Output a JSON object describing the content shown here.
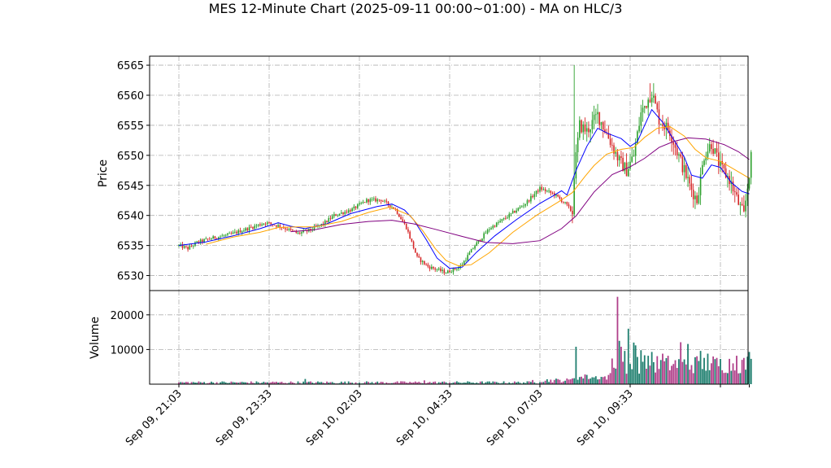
{
  "chart_data": {
    "type": "candlestick",
    "title": "MES 12-Minute Chart (2025-09-11 00:00~01:00) - MA on HLC/3",
    "price_panel": {
      "ylabel": "Price",
      "ylim": [
        6527.5,
        6566.5
      ],
      "yticks": [
        6530,
        6535,
        6540,
        6545,
        6550,
        6555,
        6560,
        6565
      ],
      "grid": true,
      "up_color": "#2ca02c",
      "down_color": "#d62728",
      "ma_series": [
        {
          "color": "#0000ff",
          "points": [
            [
              0,
              6535.0
            ],
            [
              15,
              6535.6
            ],
            [
              30,
              6536.6
            ],
            [
              45,
              6537.8
            ],
            [
              55,
              6538.8
            ],
            [
              62,
              6538.2
            ],
            [
              70,
              6537.8
            ],
            [
              82,
              6538.6
            ],
            [
              95,
              6540.3
            ],
            [
              110,
              6541.5
            ],
            [
              118,
              6541.9
            ],
            [
              125,
              6540.9
            ],
            [
              130,
              6539.3
            ],
            [
              137,
              6536.0
            ],
            [
              143,
              6532.9
            ],
            [
              150,
              6531.2
            ],
            [
              157,
              6531.4
            ],
            [
              165,
              6533.9
            ],
            [
              175,
              6536.6
            ],
            [
              187,
              6539.3
            ],
            [
              200,
              6542.0
            ],
            [
              207,
              6543.2
            ],
            [
              212,
              6544.1
            ],
            [
              215,
              6543.4
            ],
            [
              220,
              6547.5
            ],
            [
              226,
              6551.5
            ],
            [
              232,
              6554.5
            ],
            [
              238,
              6553.6
            ],
            [
              245,
              6552.8
            ],
            [
              250,
              6551.5
            ],
            [
              254,
              6552.3
            ],
            [
              258,
              6555.0
            ],
            [
              262,
              6557.6
            ],
            [
              268,
              6555.5
            ],
            [
              275,
              6552.2
            ],
            [
              280,
              6549.7
            ],
            [
              284,
              6546.7
            ],
            [
              290,
              6546.2
            ],
            [
              295,
              6548.4
            ],
            [
              300,
              6548.0
            ],
            [
              306,
              6545.5
            ],
            [
              312,
              6544.0
            ],
            [
              316,
              6543.6
            ]
          ]
        },
        {
          "color": "#ffa500",
          "points": [
            [
              15,
              6535.2
            ],
            [
              30,
              6536.4
            ],
            [
              45,
              6537.2
            ],
            [
              55,
              6538.0
            ],
            [
              65,
              6538.1
            ],
            [
              75,
              6538.1
            ],
            [
              90,
              6539.0
            ],
            [
              105,
              6540.5
            ],
            [
              117,
              6541.4
            ],
            [
              128,
              6540.0
            ],
            [
              135,
              6537.5
            ],
            [
              142,
              6534.5
            ],
            [
              148,
              6532.5
            ],
            [
              155,
              6531.6
            ],
            [
              162,
              6531.8
            ],
            [
              172,
              6533.8
            ],
            [
              185,
              6537.2
            ],
            [
              198,
              6540.0
            ],
            [
              210,
              6542.2
            ],
            [
              218,
              6543.8
            ],
            [
              225,
              6546.5
            ],
            [
              230,
              6548.3
            ],
            [
              237,
              6550.2
            ],
            [
              245,
              6551.0
            ],
            [
              252,
              6551.3
            ],
            [
              258,
              6553.0
            ],
            [
              265,
              6554.5
            ],
            [
              272,
              6554.8
            ],
            [
              280,
              6553.2
            ],
            [
              286,
              6551.0
            ],
            [
              292,
              6549.6
            ],
            [
              300,
              6549.0
            ],
            [
              308,
              6547.6
            ],
            [
              316,
              6546.2
            ]
          ]
        },
        {
          "color": "#800080",
          "points": [
            [
              62,
              6537.3
            ],
            [
              75,
              6537.6
            ],
            [
              90,
              6538.5
            ],
            [
              105,
              6539.0
            ],
            [
              118,
              6539.2
            ],
            [
              130,
              6538.6
            ],
            [
              142,
              6537.7
            ],
            [
              157,
              6536.5
            ],
            [
              170,
              6535.5
            ],
            [
              185,
              6535.3
            ],
            [
              200,
              6535.8
            ],
            [
              212,
              6537.8
            ],
            [
              220,
              6539.9
            ],
            [
              230,
              6543.9
            ],
            [
              240,
              6546.8
            ],
            [
              250,
              6548.1
            ],
            [
              258,
              6549.5
            ],
            [
              266,
              6551.3
            ],
            [
              274,
              6552.3
            ],
            [
              282,
              6552.9
            ],
            [
              292,
              6552.7
            ],
            [
              302,
              6551.8
            ],
            [
              310,
              6550.6
            ],
            [
              316,
              6549.3
            ]
          ]
        }
      ]
    },
    "volume_panel": {
      "ylabel": "Volume",
      "ylim": [
        0,
        27000
      ],
      "yticks": [
        10000,
        20000
      ],
      "grid": true,
      "highlights": [
        {
          "i": 70,
          "v": 1500
        },
        {
          "i": 136,
          "v": 1100
        },
        {
          "i": 196,
          "v": 1200
        },
        {
          "i": 220,
          "v": 10800
        },
        {
          "i": 225,
          "v": 2800
        },
        {
          "i": 239,
          "v": 3200
        },
        {
          "i": 242,
          "v": 4500
        },
        {
          "i": 243,
          "v": 25200
        },
        {
          "i": 244,
          "v": 12500
        },
        {
          "i": 245,
          "v": 10800
        },
        {
          "i": 247,
          "v": 9600
        },
        {
          "i": 249,
          "v": 16000
        },
        {
          "i": 252,
          "v": 12000
        },
        {
          "i": 253,
          "v": 11200
        },
        {
          "i": 256,
          "v": 9800
        },
        {
          "i": 260,
          "v": 8200
        },
        {
          "i": 262,
          "v": 9300
        },
        {
          "i": 268,
          "v": 8800
        },
        {
          "i": 278,
          "v": 12100
        },
        {
          "i": 282,
          "v": 11600
        },
        {
          "i": 289,
          "v": 9600
        },
        {
          "i": 293,
          "v": 8800
        },
        {
          "i": 309,
          "v": 8200
        },
        {
          "i": 316,
          "v": 9300
        }
      ]
    },
    "x_axis": {
      "tick_labels": [
        "Sep 09, 21:03",
        "Sep 09, 23:33",
        "Sep 10, 02:03",
        "Sep 10, 04:33",
        "Sep 10, 07:03",
        "Sep 10, 09:33"
      ],
      "n_bars": 318
    },
    "price_anchors": [
      [
        0,
        6535.0
      ],
      [
        5,
        6534.5
      ],
      [
        10,
        6535.5
      ],
      [
        18,
        6536.2
      ],
      [
        28,
        6536.8
      ],
      [
        38,
        6537.8
      ],
      [
        48,
        6538.8
      ],
      [
        56,
        6538.2
      ],
      [
        66,
        6537.0
      ],
      [
        72,
        6537.5
      ],
      [
        80,
        6538.6
      ],
      [
        86,
        6540.0
      ],
      [
        96,
        6541.0
      ],
      [
        104,
        6542.5
      ],
      [
        112,
        6542.6
      ],
      [
        120,
        6541.0
      ],
      [
        126,
        6538.0
      ],
      [
        132,
        6533.0
      ],
      [
        138,
        6531.5
      ],
      [
        148,
        6530.5
      ],
      [
        156,
        6531.5
      ],
      [
        164,
        6535.0
      ],
      [
        172,
        6537.8
      ],
      [
        182,
        6539.8
      ],
      [
        192,
        6542.0
      ],
      [
        200,
        6544.5
      ],
      [
        208,
        6543.5
      ],
      [
        214,
        6542.0
      ],
      [
        218,
        6540.5
      ],
      [
        219,
        6547.0
      ],
      [
        222,
        6555.0
      ],
      [
        226,
        6554.0
      ],
      [
        232,
        6556.8
      ],
      [
        238,
        6553.0
      ],
      [
        244,
        6549.0
      ],
      [
        248,
        6547.5
      ],
      [
        252,
        6550.0
      ],
      [
        256,
        6557.0
      ],
      [
        262,
        6560.5
      ],
      [
        266,
        6556.0
      ],
      [
        272,
        6554.0
      ],
      [
        278,
        6549.0
      ],
      [
        283,
        6545.0
      ],
      [
        287,
        6542.5
      ],
      [
        291,
        6550.0
      ],
      [
        295,
        6552.0
      ],
      [
        300,
        6548.0
      ],
      [
        305,
        6546.0
      ],
      [
        310,
        6542.0
      ],
      [
        313,
        6540.0
      ],
      [
        317,
        6549.5
      ]
    ]
  }
}
